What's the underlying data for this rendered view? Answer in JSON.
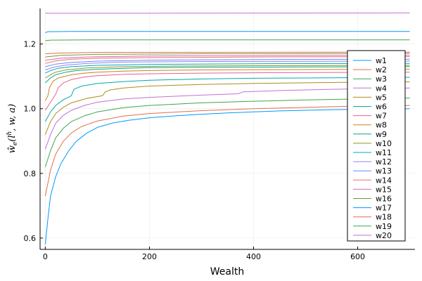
{
  "chart_data": {
    "type": "line",
    "title": "",
    "xlabel": "Wealth",
    "ylabel": "ŵ_e(l^h, w, a)",
    "ylabel_parts": {
      "main": "ŵ",
      "sub": "e",
      "args_open": "(l",
      "sup": "h",
      "args_close": ", w, a)"
    },
    "xlim": [
      -10,
      710
    ],
    "ylim": [
      0.565,
      1.31
    ],
    "xticks": [
      0,
      200,
      400,
      600
    ],
    "xtick_labels": [
      "0",
      "200",
      "400",
      "600"
    ],
    "yticks": [
      0.6,
      0.8,
      1.0,
      1.2
    ],
    "ytick_labels": [
      "0.6",
      "0.8",
      "1.0",
      "1.2"
    ],
    "grid": true,
    "legend_position": "right",
    "series": [
      {
        "name": "w1",
        "color": "#009AFA",
        "points": [
          [
            0,
            0.58
          ],
          [
            5,
            0.66
          ],
          [
            10,
            0.73
          ],
          [
            20,
            0.79
          ],
          [
            30,
            0.83
          ],
          [
            45,
            0.87
          ],
          [
            60,
            0.9
          ],
          [
            80,
            0.925
          ],
          [
            100,
            0.942
          ],
          [
            130,
            0.956
          ],
          [
            160,
            0.964
          ],
          [
            200,
            0.972
          ],
          [
            250,
            0.978
          ],
          [
            300,
            0.983
          ],
          [
            350,
            0.987
          ],
          [
            400,
            0.99
          ],
          [
            450,
            0.993
          ],
          [
            500,
            0.995
          ],
          [
            550,
            0.997
          ],
          [
            600,
            0.998
          ],
          [
            650,
            0.999
          ],
          [
            700,
            1.0
          ]
        ]
      },
      {
        "name": "w2",
        "color": "#E36F47",
        "points": [
          [
            0,
            0.73
          ],
          [
            10,
            0.81
          ],
          [
            20,
            0.86
          ],
          [
            35,
            0.9
          ],
          [
            50,
            0.925
          ],
          [
            70,
            0.945
          ],
          [
            100,
            0.962
          ],
          [
            150,
            0.977
          ],
          [
            200,
            0.985
          ],
          [
            300,
            0.994
          ],
          [
            400,
            1.0
          ],
          [
            500,
            1.004
          ],
          [
            600,
            1.008
          ],
          [
            700,
            1.01
          ]
        ]
      },
      {
        "name": "w3",
        "color": "#3EA44E",
        "points": [
          [
            0,
            0.82
          ],
          [
            10,
            0.87
          ],
          [
            20,
            0.91
          ],
          [
            35,
            0.94
          ],
          [
            50,
            0.96
          ],
          [
            75,
            0.978
          ],
          [
            100,
            0.99
          ],
          [
            150,
            1.003
          ],
          [
            200,
            1.01
          ],
          [
            300,
            1.018
          ],
          [
            400,
            1.023
          ],
          [
            500,
            1.027
          ],
          [
            600,
            1.03
          ],
          [
            700,
            1.033
          ]
        ]
      },
      {
        "name": "w4",
        "color": "#C271D2",
        "points": [
          [
            0,
            0.875
          ],
          [
            10,
            0.92
          ],
          [
            20,
            0.955
          ],
          [
            35,
            0.98
          ],
          [
            50,
            0.995
          ],
          [
            75,
            1.01
          ],
          [
            100,
            1.02
          ],
          [
            150,
            1.03
          ],
          [
            200,
            1.035
          ],
          [
            300,
            1.042
          ],
          [
            370,
            1.046
          ],
          [
            380,
            1.052
          ],
          [
            450,
            1.056
          ],
          [
            550,
            1.06
          ],
          [
            700,
            1.064
          ]
        ]
      },
      {
        "name": "w5",
        "color": "#AC8D18",
        "points": [
          [
            0,
            0.92
          ],
          [
            10,
            0.96
          ],
          [
            20,
            0.985
          ],
          [
            35,
            1.005
          ],
          [
            50,
            1.018
          ],
          [
            80,
            1.032
          ],
          [
            110,
            1.04
          ],
          [
            115,
            1.052
          ],
          [
            125,
            1.058
          ],
          [
            150,
            1.064
          ],
          [
            200,
            1.07
          ],
          [
            300,
            1.075
          ],
          [
            400,
            1.078
          ],
          [
            500,
            1.08
          ],
          [
            600,
            1.082
          ],
          [
            700,
            1.083
          ]
        ]
      },
      {
        "name": "w6",
        "color": "#00A9AD",
        "points": [
          [
            0,
            0.96
          ],
          [
            10,
            0.99
          ],
          [
            20,
            1.01
          ],
          [
            35,
            1.028
          ],
          [
            50,
            1.04
          ],
          [
            55,
            1.06
          ],
          [
            70,
            1.07
          ],
          [
            100,
            1.078
          ],
          [
            150,
            1.084
          ],
          [
            200,
            1.088
          ],
          [
            300,
            1.092
          ],
          [
            400,
            1.094
          ],
          [
            500,
            1.095
          ],
          [
            600,
            1.096
          ],
          [
            700,
            1.097
          ]
        ]
      },
      {
        "name": "w7",
        "color": "#ED5E93",
        "points": [
          [
            0,
            0.995
          ],
          [
            10,
            1.02
          ],
          [
            20,
            1.045
          ],
          [
            25,
            1.065
          ],
          [
            35,
            1.08
          ],
          [
            50,
            1.09
          ],
          [
            75,
            1.098
          ],
          [
            100,
            1.102
          ],
          [
            150,
            1.106
          ],
          [
            200,
            1.108
          ],
          [
            300,
            1.11
          ],
          [
            500,
            1.112
          ],
          [
            700,
            1.113
          ]
        ]
      },
      {
        "name": "w8",
        "color": "#C68225",
        "points": [
          [
            0,
            1.025
          ],
          [
            5,
            1.04
          ],
          [
            8,
            1.065
          ],
          [
            15,
            1.085
          ],
          [
            25,
            1.095
          ],
          [
            50,
            1.105
          ],
          [
            75,
            1.11
          ],
          [
            100,
            1.113
          ],
          [
            150,
            1.116
          ],
          [
            200,
            1.118
          ],
          [
            300,
            1.12
          ],
          [
            500,
            1.121
          ],
          [
            700,
            1.122
          ]
        ]
      },
      {
        "name": "w9",
        "color": "#00A98D",
        "points": [
          [
            0,
            1.08
          ],
          [
            10,
            1.095
          ],
          [
            20,
            1.105
          ],
          [
            40,
            1.113
          ],
          [
            60,
            1.118
          ],
          [
            100,
            1.122
          ],
          [
            150,
            1.125
          ],
          [
            200,
            1.127
          ],
          [
            300,
            1.128
          ],
          [
            500,
            1.129
          ],
          [
            700,
            1.13
          ]
        ]
      },
      {
        "name": "w10",
        "color": "#8E971D",
        "points": [
          [
            0,
            1.095
          ],
          [
            10,
            1.105
          ],
          [
            20,
            1.113
          ],
          [
            40,
            1.12
          ],
          [
            80,
            1.126
          ],
          [
            150,
            1.13
          ],
          [
            250,
            1.132
          ],
          [
            400,
            1.133
          ],
          [
            700,
            1.134
          ]
        ]
      },
      {
        "name": "w11",
        "color": "#00A8CB",
        "points": [
          [
            0,
            1.11
          ],
          [
            10,
            1.118
          ],
          [
            25,
            1.125
          ],
          [
            50,
            1.13
          ],
          [
            100,
            1.134
          ],
          [
            200,
            1.137
          ],
          [
            400,
            1.139
          ],
          [
            700,
            1.14
          ]
        ]
      },
      {
        "name": "w12",
        "color": "#9B7FE9",
        "points": [
          [
            0,
            1.12
          ],
          [
            15,
            1.128
          ],
          [
            40,
            1.135
          ],
          [
            80,
            1.14
          ],
          [
            150,
            1.144
          ],
          [
            300,
            1.146
          ],
          [
            700,
            1.147
          ]
        ]
      },
      {
        "name": "w13",
        "color": "#618DF6",
        "points": [
          [
            0,
            1.13
          ],
          [
            20,
            1.138
          ],
          [
            50,
            1.143
          ],
          [
            100,
            1.147
          ],
          [
            200,
            1.15
          ],
          [
            400,
            1.152
          ],
          [
            700,
            1.153
          ]
        ]
      },
      {
        "name": "w14",
        "color": "#F16C6C",
        "points": [
          [
            0,
            1.14
          ],
          [
            20,
            1.148
          ],
          [
            50,
            1.153
          ],
          [
            100,
            1.156
          ],
          [
            200,
            1.158
          ],
          [
            400,
            1.16
          ],
          [
            700,
            1.161
          ]
        ]
      },
      {
        "name": "w15",
        "color": "#DC63BB",
        "points": [
          [
            0,
            1.15
          ],
          [
            30,
            1.156
          ],
          [
            80,
            1.16
          ],
          [
            200,
            1.163
          ],
          [
            400,
            1.164
          ],
          [
            700,
            1.165
          ]
        ]
      },
      {
        "name": "w16",
        "color": "#6B9E32",
        "points": [
          [
            0,
            1.16
          ],
          [
            30,
            1.165
          ],
          [
            100,
            1.168
          ],
          [
            300,
            1.17
          ],
          [
            700,
            1.171
          ]
        ]
      },
      {
        "name": "w17",
        "color": "#009AFA",
        "points": [
          [
            0,
            1.235
          ],
          [
            5,
            1.238
          ],
          [
            50,
            1.239
          ],
          [
            700,
            1.239
          ]
        ]
      },
      {
        "name": "w18",
        "color": "#E36F47",
        "points": [
          [
            0,
            1.17
          ],
          [
            30,
            1.172
          ],
          [
            100,
            1.174
          ],
          [
            700,
            1.175
          ]
        ]
      },
      {
        "name": "w19",
        "color": "#3EA44E",
        "points": [
          [
            0,
            1.21
          ],
          [
            10,
            1.212
          ],
          [
            100,
            1.213
          ],
          [
            700,
            1.213
          ]
        ]
      },
      {
        "name": "w20",
        "color": "#C271D2",
        "points": [
          [
            0,
            1.295
          ],
          [
            700,
            1.296
          ]
        ]
      }
    ]
  }
}
